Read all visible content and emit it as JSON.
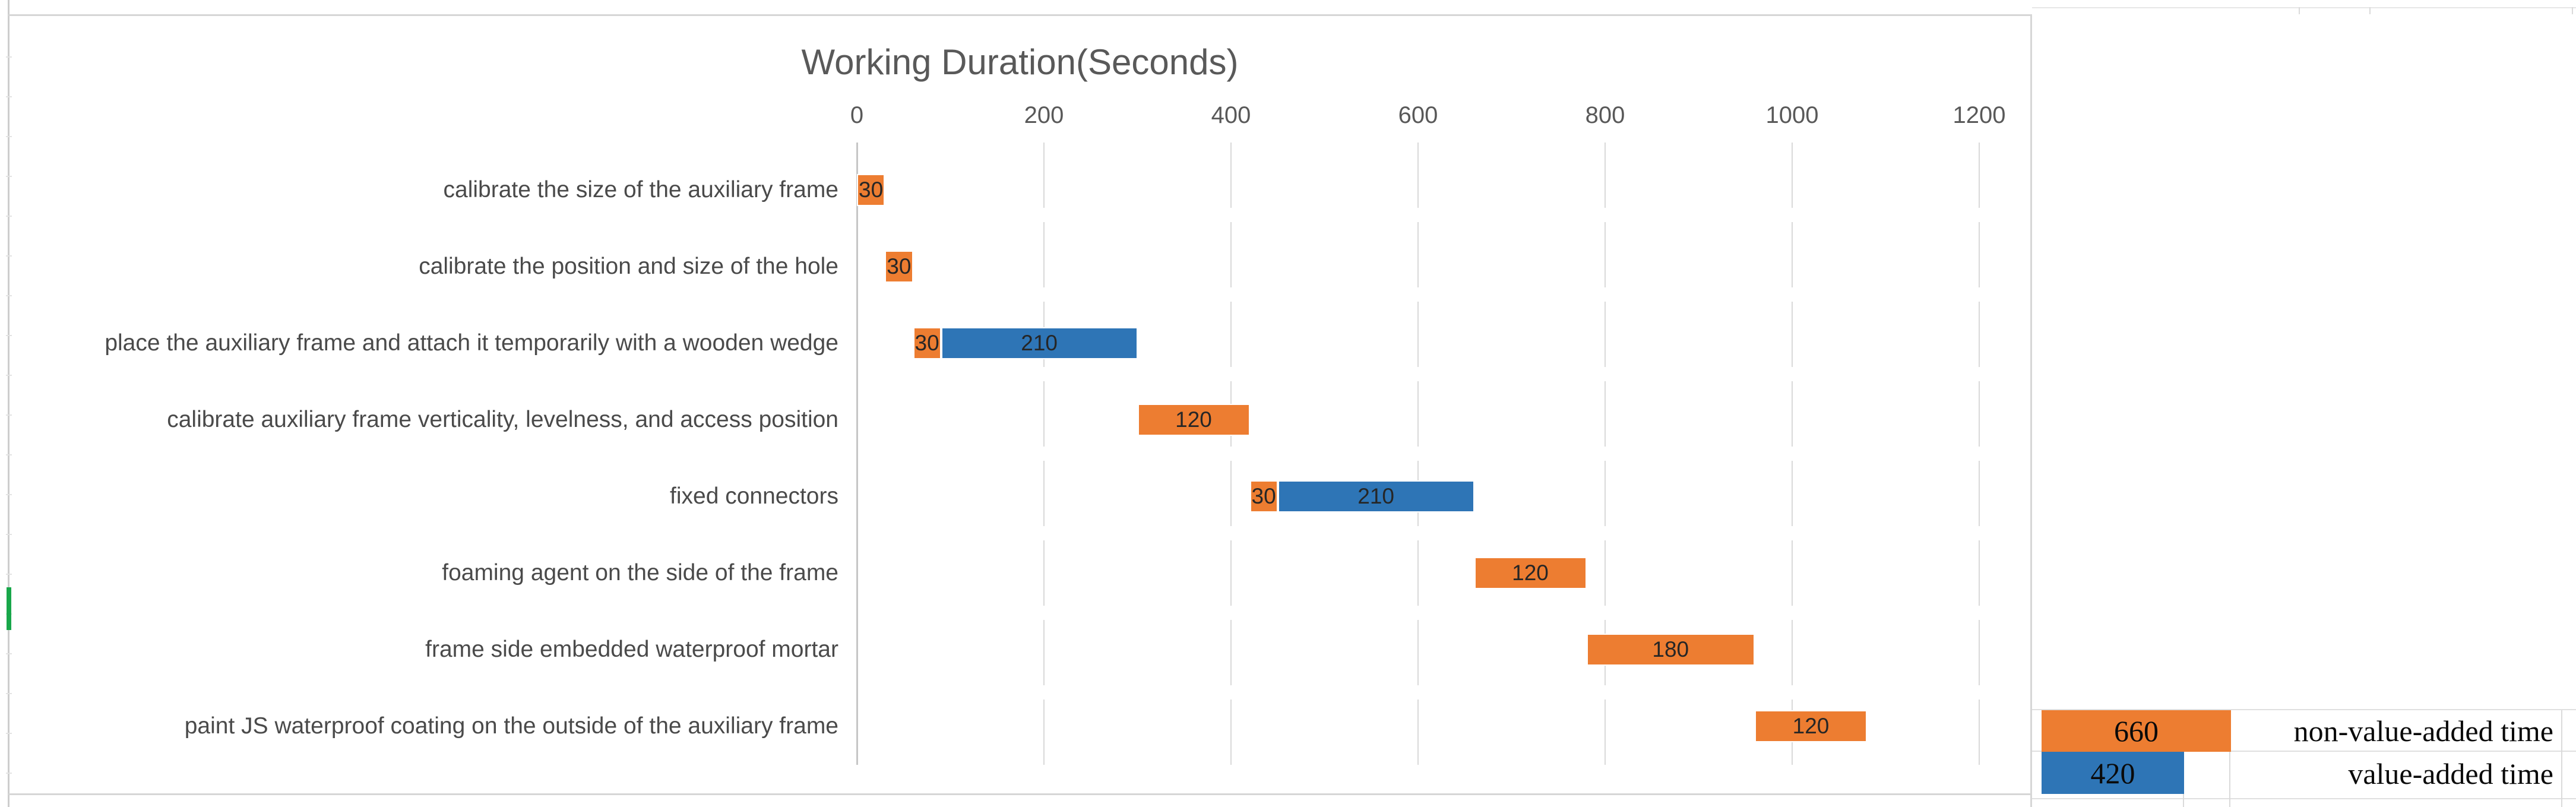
{
  "sheet": {
    "selected_cell_indicator_color": "#18A74A"
  },
  "chart_data": {
    "type": "bar",
    "variant": "horizontal-stacked-gantt",
    "title": "Working Duration(Seconds)",
    "xlabel": "",
    "ylabel": "",
    "x_ticks": [
      0,
      200,
      400,
      600,
      800,
      1000,
      1200
    ],
    "xlim": [
      0,
      1260
    ],
    "grid": "vertical-dashed",
    "legend_position": "bottom-right-cells",
    "series": [
      {
        "name": "non-value-added time",
        "color": "#ED7D31"
      },
      {
        "name": "value-added time",
        "color": "#2E75B6"
      }
    ],
    "tasks": [
      {
        "label": "calibrate the size of the auxiliary frame",
        "start": 0,
        "non_value_added": 30,
        "value_added": 0
      },
      {
        "label": "calibrate the position and size of the hole",
        "start": 30,
        "non_value_added": 30,
        "value_added": 0
      },
      {
        "label": "place the auxiliary frame and attach it temporarily with a wooden wedge",
        "start": 60,
        "non_value_added": 30,
        "value_added": 210
      },
      {
        "label": "calibrate auxiliary frame verticality, levelness, and access position",
        "start": 300,
        "non_value_added": 120,
        "value_added": 0
      },
      {
        "label": "fixed connectors",
        "start": 420,
        "non_value_added": 30,
        "value_added": 210
      },
      {
        "label": "foaming agent on the side of the frame",
        "start": 660,
        "non_value_added": 120,
        "value_added": 0
      },
      {
        "label": "frame side embedded waterproof mortar",
        "start": 780,
        "non_value_added": 180,
        "value_added": 0
      },
      {
        "label": "paint JS waterproof coating on the outside of the auxiliary frame",
        "start": 960,
        "non_value_added": 120,
        "value_added": 0
      }
    ],
    "legend": [
      {
        "value": "660",
        "label": "non-value-added time",
        "color": "#ED7D31"
      },
      {
        "value": "420",
        "label": "value-added time",
        "color": "#2E75B6"
      }
    ]
  },
  "colors": {
    "bar_orange": "#ED7D31",
    "bar_blue": "#2E75B6",
    "title_text": "#595959",
    "tick_text": "#595959",
    "category_text": "#4A4A4A",
    "bar_value_text": "#262626",
    "gridline": "#D9D9D9",
    "axis_line": "#C6C6C6",
    "chart_border": "#D6D6D6",
    "sheet_gridline": "#E3E3E3",
    "selection_green": "#18A74A"
  }
}
